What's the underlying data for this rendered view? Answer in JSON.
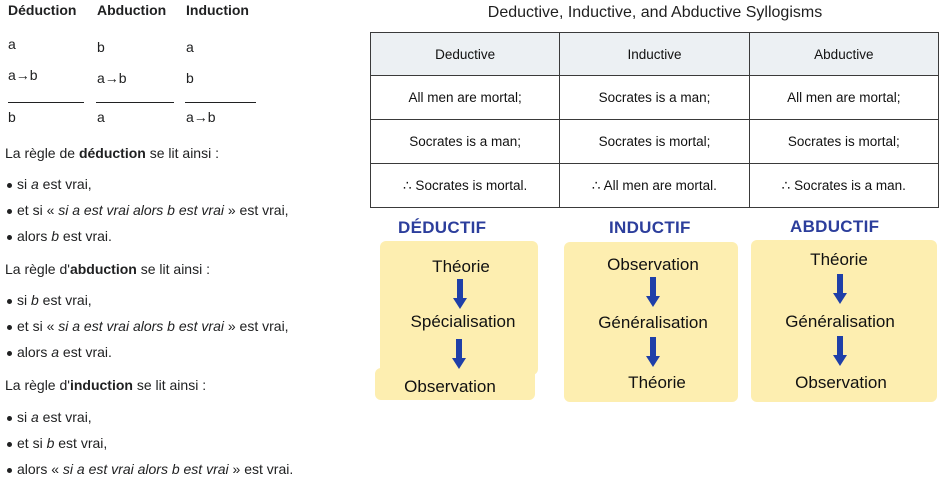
{
  "syllogisms": {
    "headers": [
      "Déduction",
      "Abduction",
      "Induction"
    ],
    "deduction": [
      "a",
      "a→b",
      "b"
    ],
    "abduction": [
      "b",
      "a→b",
      "a"
    ],
    "induction": [
      "a",
      "b",
      "a→b"
    ]
  },
  "rules": {
    "deduction": {
      "intro_pre": "La règle de ",
      "intro_bold": "déduction",
      "intro_post": " se lit ainsi :",
      "b1_pre": "si ",
      "b1_var": "a",
      "b1_post": " est vrai,",
      "b2_pre": "et si « ",
      "b2_it": "si a est vrai alors b est vrai",
      "b2_post": " » est vrai,",
      "b3_pre": "alors ",
      "b3_var": "b",
      "b3_post": " est vrai."
    },
    "abduction": {
      "intro_pre": "La règle d'",
      "intro_bold": "abduction",
      "intro_post": " se lit ainsi :",
      "b1_pre": "si ",
      "b1_var": "b",
      "b1_post": " est vrai,",
      "b2_pre": "et si « ",
      "b2_it": "si a est vrai alors b est vrai",
      "b2_post": " » est vrai,",
      "b3_pre": "alors ",
      "b3_var": "a",
      "b3_post": " est vrai."
    },
    "induction": {
      "intro_pre": "La règle d'",
      "intro_bold": "induction",
      "intro_post": " se lit ainsi :",
      "b1_pre": "si ",
      "b1_var": "a",
      "b1_post": " est vrai,",
      "b2_pre": "et si ",
      "b2_var": "b",
      "b2_post": " est vrai,",
      "b3_pre": "alors « ",
      "b3_it": "si a est vrai alors b est vrai",
      "b3_post": " » est vrai."
    }
  },
  "table": {
    "title": "Deductive, Inductive, and Abductive Syllogisms",
    "headers": [
      "Deductive",
      "Inductive",
      "Abductive"
    ],
    "rows": [
      [
        "All men are mortal;",
        "Socrates is a man;",
        "All men are mortal;"
      ],
      [
        "Socrates is a man;",
        "Socrates is mortal;",
        "Socrates is mortal;"
      ],
      [
        "∴ Socrates is mortal.",
        "∴ All men are mortal.",
        "∴ Socrates is a man."
      ]
    ]
  },
  "diagram": {
    "deductif": {
      "title": "DÉDUCTIF",
      "steps": [
        "Théorie",
        "Spécialisation",
        "Observation"
      ]
    },
    "inductif": {
      "title": "INDUCTIF",
      "steps": [
        "Observation",
        "Généralisation",
        "Théorie"
      ]
    },
    "abductif": {
      "title": "ABDUCTIF",
      "steps": [
        "Théorie",
        "Généralisation",
        "Observation"
      ]
    },
    "colors": {
      "title": "#2c3e9c",
      "box": "#fdeeb0",
      "arrow": "#1f3fa8"
    }
  }
}
